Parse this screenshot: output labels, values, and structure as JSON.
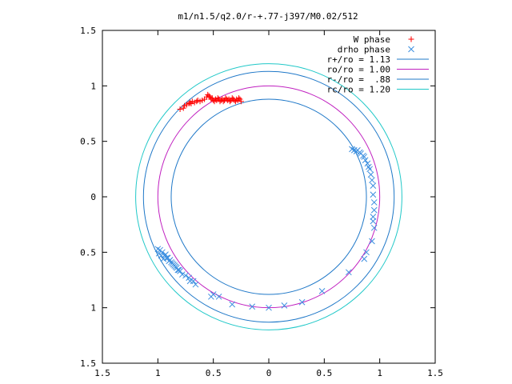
{
  "chart_data": {
    "type": "scatter",
    "title": "m1/n1.5/q2.0/r-+.77-j397/M0.02/512",
    "xlabel": "",
    "ylabel": "",
    "xlim": [
      -1.5,
      1.5
    ],
    "ylim": [
      -1.5,
      1.5
    ],
    "x_ticks": [
      -1.5,
      -1,
      -0.5,
      0,
      0.5,
      1,
      1.5
    ],
    "x_tick_labels": [
      "1.5",
      "1",
      "0.5",
      "0",
      "0.5",
      "1",
      "1.5"
    ],
    "y_ticks": [
      1.5,
      1,
      0.5,
      0,
      -0.5,
      -1,
      -1.5
    ],
    "y_tick_labels": [
      "1.5",
      "1",
      "0.5",
      "0",
      "0.5",
      "1",
      "1.5"
    ],
    "grid": false,
    "legend_position": "top-right",
    "series": [
      {
        "name": "W phase",
        "kind": "points",
        "marker": "plus",
        "color": "#ff0000",
        "points": [
          [
            -0.8,
            0.79
          ],
          [
            -0.77,
            0.8
          ],
          [
            -0.76,
            0.82
          ],
          [
            -0.74,
            0.83
          ],
          [
            -0.72,
            0.84
          ],
          [
            -0.71,
            0.85
          ],
          [
            -0.7,
            0.84
          ],
          [
            -0.69,
            0.86
          ],
          [
            -0.67,
            0.85
          ],
          [
            -0.65,
            0.86
          ],
          [
            -0.64,
            0.87
          ],
          [
            -0.62,
            0.86
          ],
          [
            -0.6,
            0.87
          ],
          [
            -0.58,
            0.88
          ],
          [
            -0.56,
            0.9
          ],
          [
            -0.55,
            0.92
          ],
          [
            -0.54,
            0.91
          ],
          [
            -0.53,
            0.9
          ],
          [
            -0.52,
            0.88
          ],
          [
            -0.51,
            0.89
          ],
          [
            -0.5,
            0.87
          ],
          [
            -0.49,
            0.86
          ],
          [
            -0.48,
            0.88
          ],
          [
            -0.47,
            0.87
          ],
          [
            -0.46,
            0.89
          ],
          [
            -0.45,
            0.88
          ],
          [
            -0.44,
            0.86
          ],
          [
            -0.43,
            0.87
          ],
          [
            -0.42,
            0.88
          ],
          [
            -0.41,
            0.86
          ],
          [
            -0.4,
            0.87
          ],
          [
            -0.39,
            0.89
          ],
          [
            -0.38,
            0.88
          ],
          [
            -0.37,
            0.87
          ],
          [
            -0.36,
            0.88
          ],
          [
            -0.35,
            0.86
          ],
          [
            -0.34,
            0.87
          ],
          [
            -0.33,
            0.89
          ],
          [
            -0.32,
            0.88
          ],
          [
            -0.31,
            0.87
          ],
          [
            -0.3,
            0.86
          ],
          [
            -0.29,
            0.88
          ],
          [
            -0.28,
            0.87
          ],
          [
            -0.27,
            0.89
          ],
          [
            -0.26,
            0.88
          ],
          [
            -0.25,
            0.86
          ]
        ]
      },
      {
        "name": "drho phase",
        "kind": "points",
        "marker": "cross",
        "color": "#3c8fe0",
        "points": [
          [
            0.75,
            0.43
          ],
          [
            0.77,
            0.42
          ],
          [
            0.79,
            0.41
          ],
          [
            0.8,
            0.42
          ],
          [
            0.82,
            0.4
          ],
          [
            0.83,
            0.39
          ],
          [
            0.85,
            0.37
          ],
          [
            0.86,
            0.36
          ],
          [
            0.87,
            0.33
          ],
          [
            0.89,
            0.3
          ],
          [
            0.9,
            0.27
          ],
          [
            0.91,
            0.25
          ],
          [
            0.92,
            0.2
          ],
          [
            0.93,
            0.15
          ],
          [
            0.94,
            0.1
          ],
          [
            0.94,
            0.02
          ],
          [
            0.95,
            -0.05
          ],
          [
            0.95,
            -0.12
          ],
          [
            0.94,
            -0.18
          ],
          [
            0.94,
            -0.22
          ],
          [
            0.95,
            -0.28
          ],
          [
            0.93,
            -0.4
          ],
          [
            0.88,
            -0.5
          ],
          [
            0.86,
            -0.56
          ],
          [
            0.72,
            -0.68
          ],
          [
            0.48,
            -0.85
          ],
          [
            0.3,
            -0.95
          ],
          [
            0.14,
            -0.98
          ],
          [
            0.0,
            -1.0
          ],
          [
            -0.15,
            -0.99
          ],
          [
            -0.33,
            -0.97
          ],
          [
            -0.45,
            -0.9
          ],
          [
            -0.5,
            -0.88
          ],
          [
            -0.52,
            -0.9
          ],
          [
            -0.66,
            -0.79
          ],
          [
            -0.68,
            -0.76
          ],
          [
            -0.71,
            -0.76
          ],
          [
            -0.72,
            -0.73
          ],
          [
            -0.75,
            -0.71
          ],
          [
            -0.78,
            -0.7
          ],
          [
            -0.8,
            -0.67
          ],
          [
            -0.82,
            -0.66
          ],
          [
            -0.84,
            -0.63
          ],
          [
            -0.86,
            -0.61
          ],
          [
            -0.88,
            -0.59
          ],
          [
            -0.9,
            -0.58
          ],
          [
            -0.92,
            -0.55
          ],
          [
            -0.94,
            -0.53
          ],
          [
            -0.96,
            -0.5
          ],
          [
            -0.98,
            -0.48
          ],
          [
            -1.0,
            -0.47
          ],
          [
            -0.99,
            -0.51
          ],
          [
            -0.97,
            -0.53
          ],
          [
            -0.95,
            -0.56
          ],
          [
            -0.93,
            -0.52
          ],
          [
            -0.91,
            -0.55
          ],
          [
            -0.89,
            -0.57
          ],
          [
            -0.87,
            -0.6
          ],
          [
            -0.85,
            -0.62
          ],
          [
            -0.83,
            -0.64
          ],
          [
            -0.81,
            -0.66
          ]
        ]
      },
      {
        "name": "r+/ro = 1.13",
        "kind": "circle",
        "radius": 1.13,
        "color": "#1f78c8"
      },
      {
        "name": "ro/ro = 1.00",
        "kind": "circle",
        "radius": 1.0,
        "color": "#c020c0"
      },
      {
        "name": "r-/ro =  .88",
        "kind": "circle",
        "radius": 0.88,
        "color": "#1f78c8"
      },
      {
        "name": "rc/ro = 1.20",
        "kind": "circle",
        "radius": 1.2,
        "color": "#20c8c8"
      }
    ]
  }
}
